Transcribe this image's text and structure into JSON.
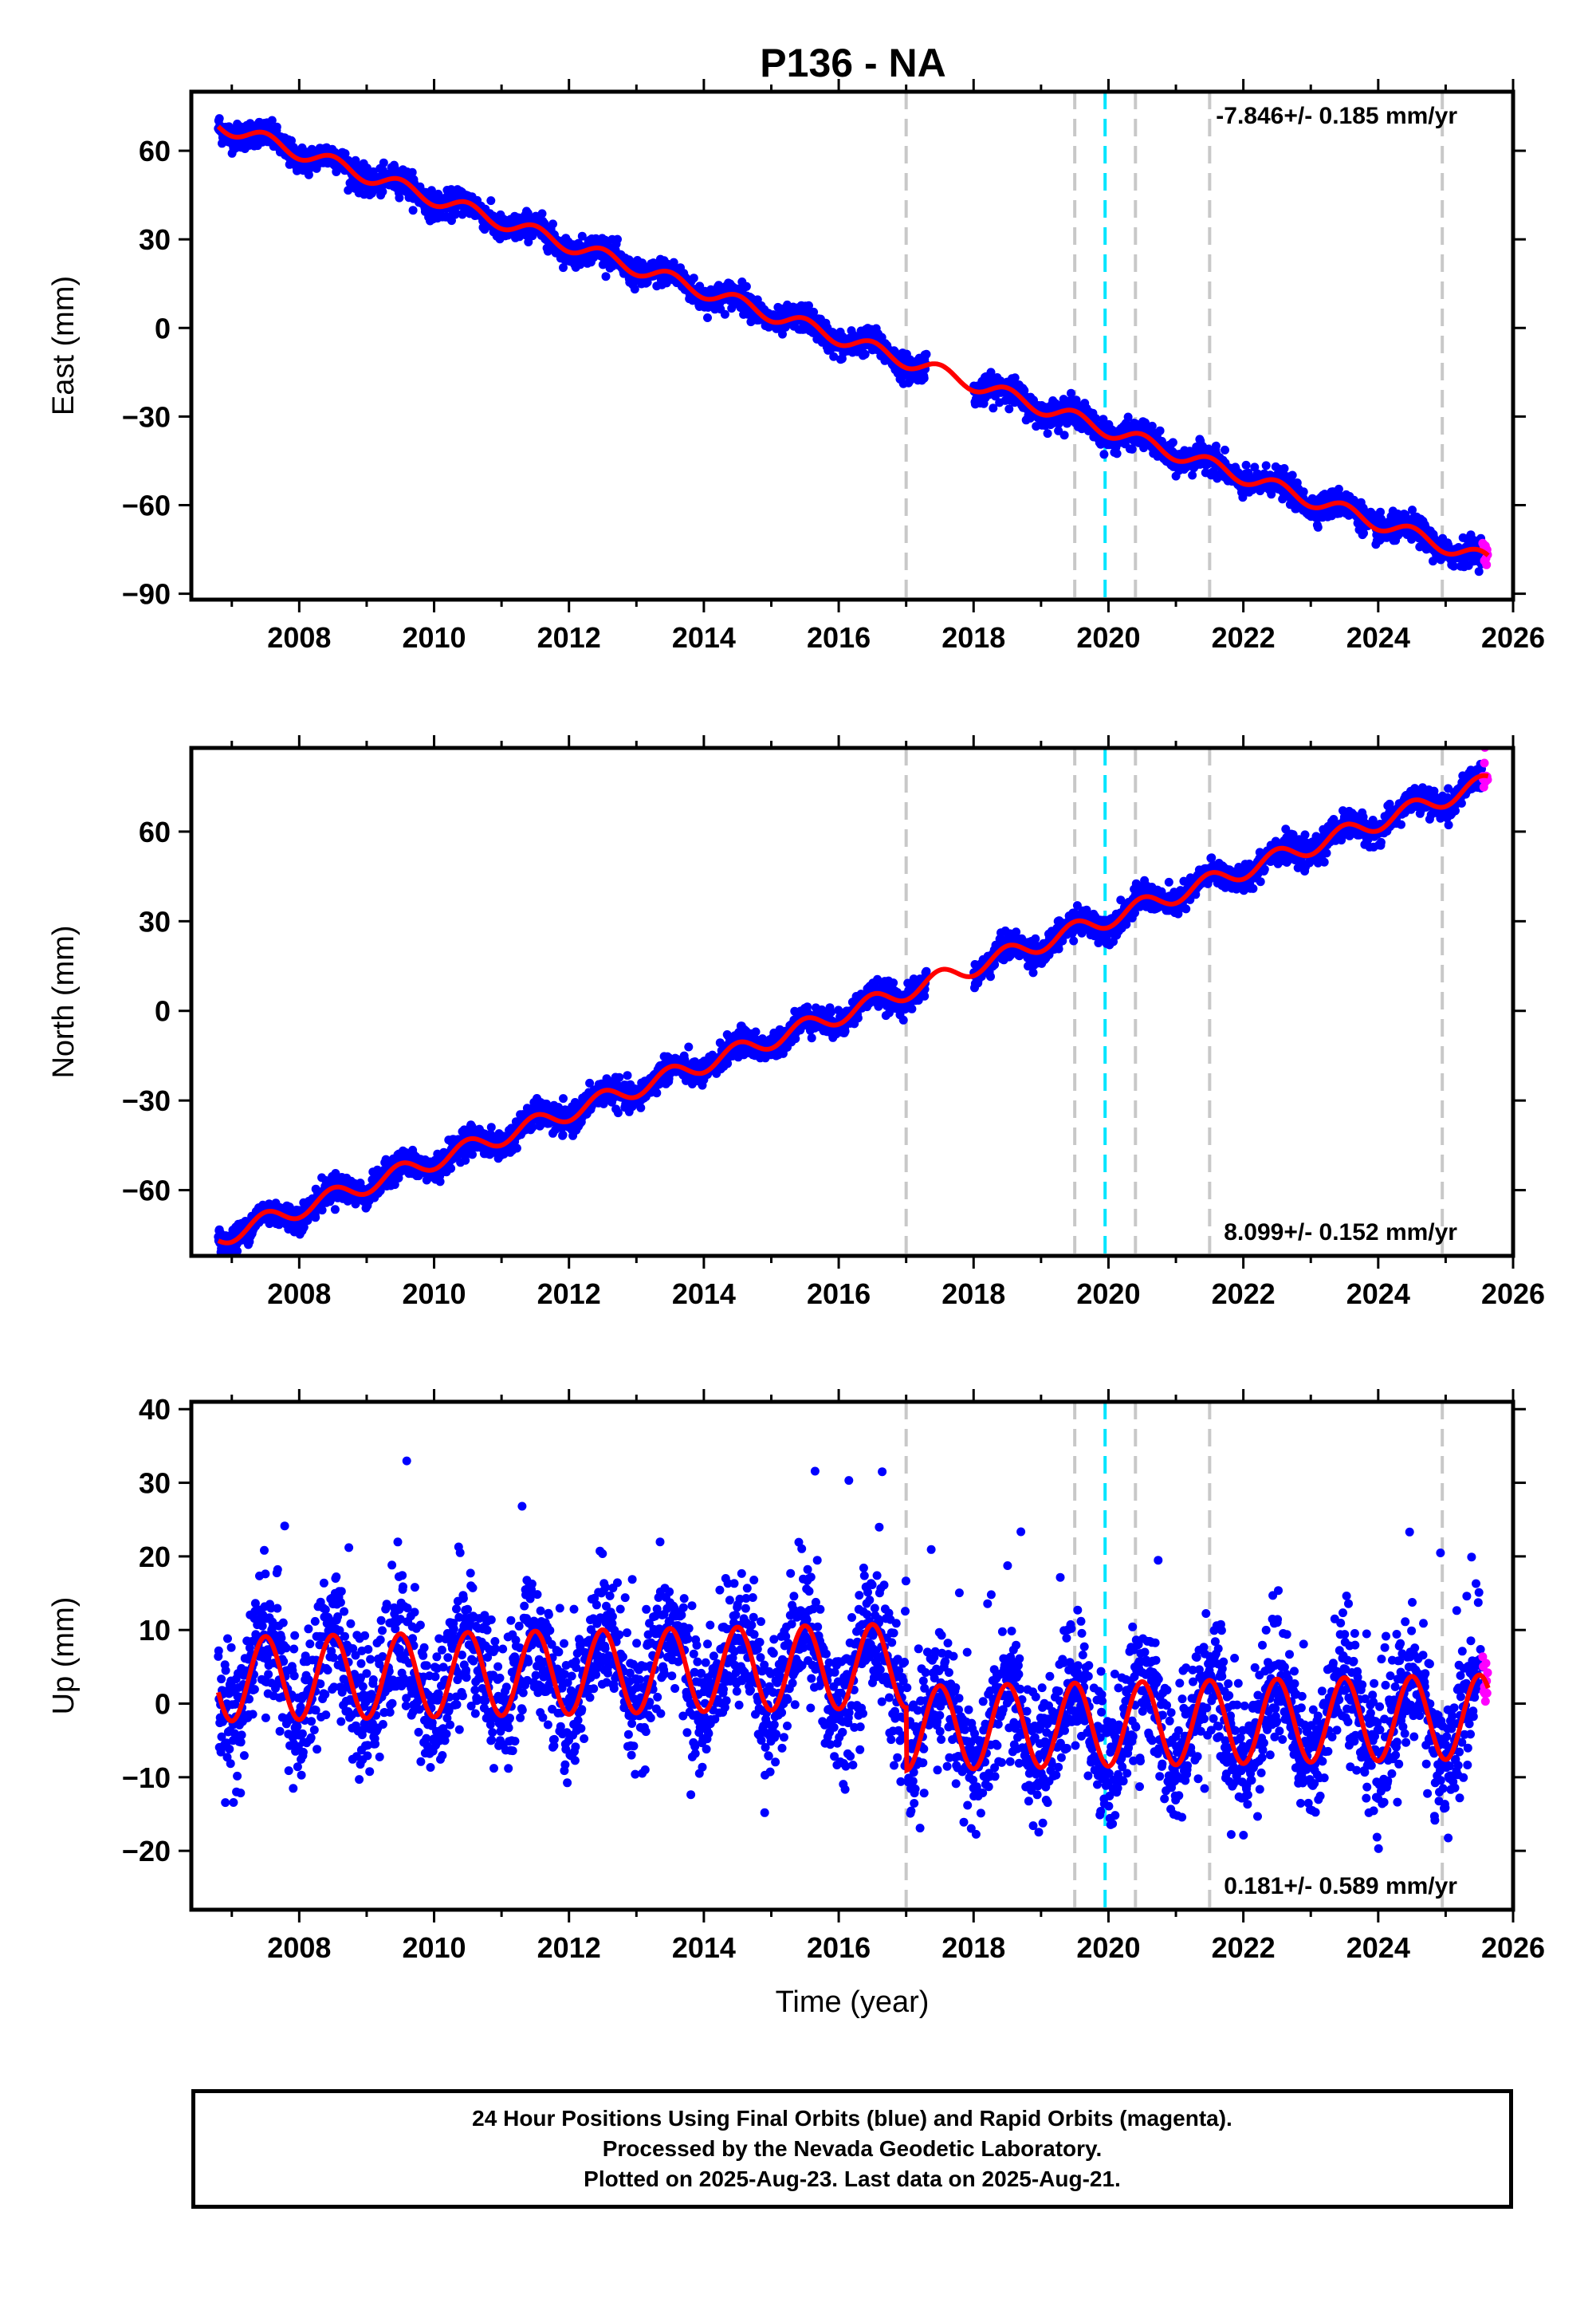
{
  "title": "P136 - NA",
  "footer": {
    "line1": "24 Hour Positions Using Final Orbits (blue) and Rapid Orbits (magenta).",
    "line2": "Processed by the Nevada Geodetic Laboratory.",
    "line3": "Plotted on 2025-Aug-23. Last data on 2025-Aug-21."
  },
  "colors": {
    "final_orbits": "#0000ff",
    "rapid_orbits": "#ff00ff",
    "model_fit": "#ff0000",
    "event_lines": "#c8c8c8",
    "reference_line": "#00e5ff"
  },
  "chart_data": [
    {
      "type": "scatter",
      "title": "P136 - NA",
      "xlabel": "",
      "ylabel": "East (mm)",
      "xlim": [
        2006.4,
        2026.0
      ],
      "ylim": [
        -92,
        80
      ],
      "x_ticks": [
        2008,
        2010,
        2012,
        2014,
        2016,
        2018,
        2020,
        2022,
        2024,
        2026
      ],
      "x_tick_labels": [
        "2008",
        "2010",
        "2012",
        "2014",
        "2016",
        "2018",
        "2020",
        "2022",
        "2024",
        "2026"
      ],
      "y_ticks": [
        -90,
        -60,
        -30,
        0,
        30,
        60
      ],
      "y_tick_labels": [
        "−90",
        "−60",
        "−30",
        "0",
        "30",
        "60"
      ],
      "rate_annotation": "-7.846+/- 0.185 mm/yr",
      "rate_position": "top-right",
      "grid": false,
      "event_lines": [
        2017.0,
        2019.5,
        2020.4,
        2021.5,
        2024.95
      ],
      "reference_line": 2019.95,
      "model": {
        "start": 2006.8,
        "end": 2025.63,
        "intercept_at_start": 69,
        "rate": -7.846,
        "annual_amp": 2.5,
        "gap": [
          2017.3,
          2018.0
        ]
      },
      "series": [
        {
          "name": "Final Orbits",
          "color": "blue",
          "start": 2006.8,
          "end": 2025.55,
          "scatter": 2.2
        },
        {
          "name": "Rapid Orbits",
          "color": "magenta",
          "start": 2025.55,
          "end": 2025.63
        }
      ]
    },
    {
      "type": "scatter",
      "xlabel": "",
      "ylabel": "North (mm)",
      "xlim": [
        2006.4,
        2026.0
      ],
      "ylim": [
        -82,
        88
      ],
      "x_ticks": [
        2008,
        2010,
        2012,
        2014,
        2016,
        2018,
        2020,
        2022,
        2024,
        2026
      ],
      "x_tick_labels": [
        "2008",
        "2010",
        "2012",
        "2014",
        "2016",
        "2018",
        "2020",
        "2022",
        "2024",
        "2026"
      ],
      "y_ticks": [
        -60,
        -30,
        0,
        30,
        60
      ],
      "y_tick_labels": [
        "−60",
        "−30",
        "0",
        "30",
        "60"
      ],
      "rate_annotation": "8.099+/- 0.152 mm/yr",
      "rate_position": "bottom-right",
      "grid": false,
      "event_lines": [
        2017.0,
        2019.5,
        2020.4,
        2021.5,
        2024.95
      ],
      "reference_line": 2019.95,
      "model": {
        "start": 2006.8,
        "end": 2025.63,
        "intercept_at_start": -76,
        "rate": 8.099,
        "annual_amp": 3.0,
        "gap": [
          2017.3,
          2018.0
        ]
      },
      "series": [
        {
          "name": "Final Orbits",
          "color": "blue",
          "start": 2006.8,
          "end": 2025.55,
          "scatter": 2.2
        },
        {
          "name": "Rapid Orbits",
          "color": "magenta",
          "start": 2025.55,
          "end": 2025.63
        }
      ]
    },
    {
      "type": "scatter",
      "xlabel": "Time (year)",
      "ylabel": "Up (mm)",
      "xlim": [
        2006.4,
        2026.0
      ],
      "ylim": [
        -28,
        41
      ],
      "x_ticks": [
        2008,
        2010,
        2012,
        2014,
        2016,
        2018,
        2020,
        2022,
        2024,
        2026
      ],
      "x_tick_labels": [
        "2008",
        "2010",
        "2012",
        "2014",
        "2016",
        "2018",
        "2020",
        "2022",
        "2024",
        "2026"
      ],
      "y_ticks": [
        -20,
        -10,
        0,
        10,
        20,
        30,
        40
      ],
      "y_tick_labels": [
        "−20",
        "−10",
        "0",
        "10",
        "20",
        "30",
        "40"
      ],
      "rate_annotation": "0.181+/- 0.589 mm/yr",
      "rate_position": "bottom-right",
      "grid": false,
      "event_lines": [
        2017.0,
        2019.5,
        2020.4,
        2021.5,
        2024.95
      ],
      "reference_line": 2019.95,
      "model": {
        "start": 2006.8,
        "end": 2025.63,
        "intercept_at_start": 3.3,
        "rate": 0.181,
        "annual_amp": 5.7,
        "offset_after_2017": -8.5
      },
      "series": [
        {
          "name": "Final Orbits",
          "color": "blue",
          "start": 2006.8,
          "end": 2025.55,
          "scatter": 4.5
        },
        {
          "name": "Rapid Orbits",
          "color": "magenta",
          "start": 2025.55,
          "end": 2025.63
        }
      ]
    }
  ]
}
